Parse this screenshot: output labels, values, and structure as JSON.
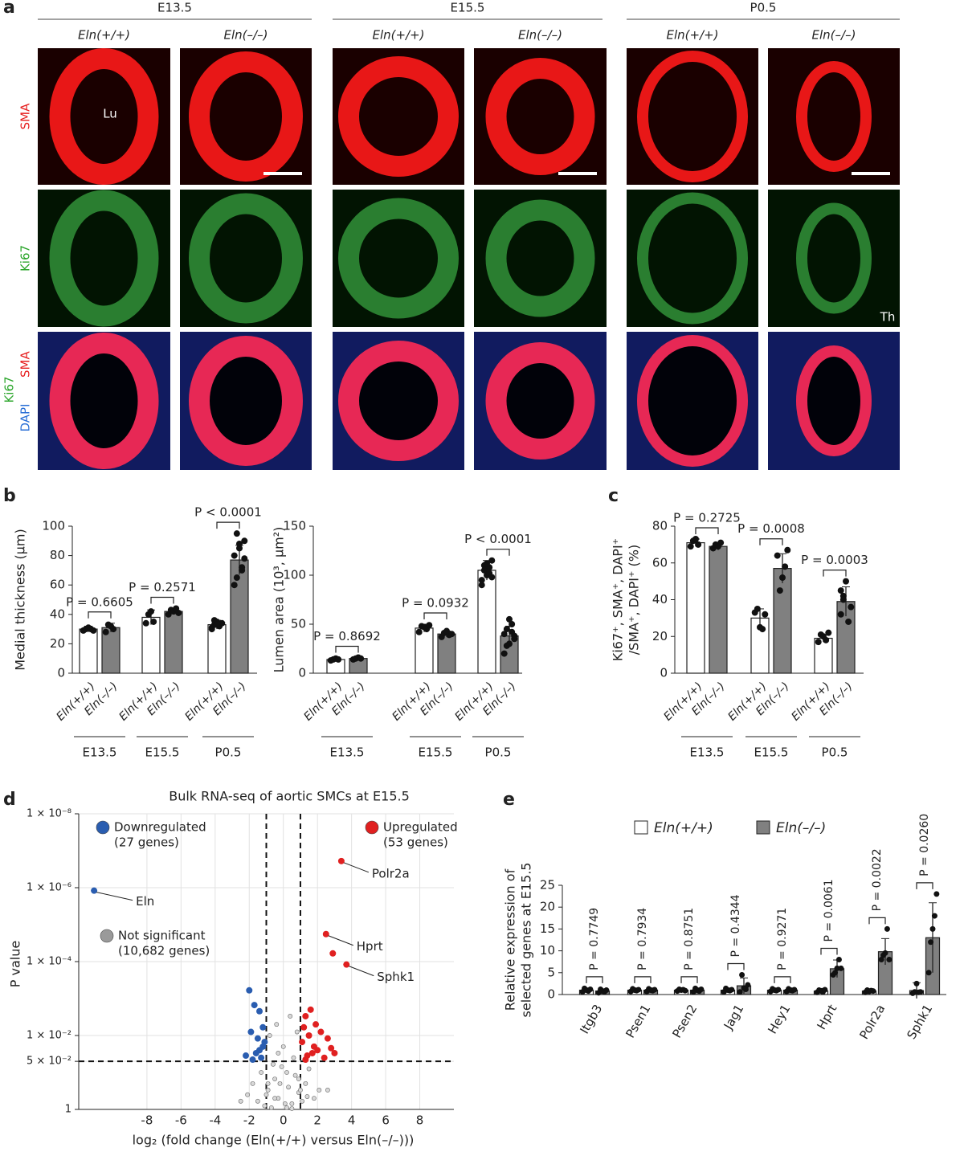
{
  "panel_a": {
    "label": "a",
    "timepoints": [
      "E13.5",
      "E15.5",
      "P0.5"
    ],
    "genotypes": [
      "Eln(+/+)",
      "Eln(–/–)"
    ],
    "rows": [
      [
        "SMA"
      ],
      [
        "Ki67"
      ],
      [
        "Ki67",
        "SMA",
        "DAPI"
      ]
    ],
    "lumen_label": "Lu",
    "thymus_label": "Th"
  },
  "chart_data": [
    {
      "type": "bar",
      "panel": "b",
      "ylabel": [
        "Medial thickness (μm)"
      ],
      "categories": [
        "E13.5",
        "E15.5",
        "P0.5"
      ],
      "ylim": [
        0,
        100
      ],
      "yticks": [
        0,
        20,
        40,
        60,
        80,
        100
      ],
      "p_labels": [
        "P = 0.6605",
        "P = 0.2571",
        "P < 0.0001"
      ],
      "series": [
        {
          "name": "Eln(+/+)",
          "color": "#ffffff",
          "values": [
            30,
            38,
            33
          ],
          "errors": [
            2,
            5,
            3
          ],
          "points": [
            [
              29,
              30,
              31,
              30,
              29
            ],
            [
              34,
              40,
              42,
              35
            ],
            [
              30,
              33,
              35,
              32,
              34,
              31,
              36,
              33
            ]
          ]
        },
        {
          "name": "Eln(–/–)",
          "color": "#808080",
          "values": [
            31,
            42,
            77
          ],
          "errors": [
            3,
            2,
            10
          ],
          "points": [
            [
              28,
              33,
              32,
              30
            ],
            [
              40,
              43,
              42,
              44,
              41
            ],
            [
              60,
              95,
              88,
              70,
              78,
              80,
              65,
              85,
              72,
              90
            ]
          ]
        }
      ]
    },
    {
      "type": "bar",
      "ylabel": [
        "Lumen area (10³, μm²)"
      ],
      "categories": [
        "E13.5",
        "E15.5",
        "P0.5"
      ],
      "ylim": [
        0,
        150
      ],
      "yticks": [
        0,
        50,
        100,
        150
      ],
      "p_labels": [
        "P = 0.8692",
        "P = 0.0932",
        "P < 0.0001"
      ],
      "series": [
        {
          "name": "Eln(+/+)",
          "color": "#ffffff",
          "values": [
            14,
            46,
            105
          ],
          "errors": [
            1,
            4,
            10
          ],
          "points": [
            [
              13,
              14,
              15,
              14
            ],
            [
              42,
              48,
              47,
              45,
              49
            ],
            [
              90,
              110,
              100,
              108,
              115,
              95,
              105,
              112,
              102,
              98
            ]
          ]
        },
        {
          "name": "Eln(–/–)",
          "color": "#808080",
          "values": [
            15,
            40,
            38
          ],
          "errors": [
            1,
            3,
            10
          ],
          "points": [
            [
              14,
              15,
              16,
              15
            ],
            [
              37,
              41,
              43,
              39,
              40
            ],
            [
              20,
              45,
              30,
              50,
              35,
              40,
              28,
              55,
              42,
              38
            ]
          ]
        }
      ]
    },
    {
      "type": "bar",
      "panel": "c",
      "ylabel": [
        "Ki67⁺, SMA⁺, DAPI⁺",
        "/SMA⁺, DAPI⁺ (%)"
      ],
      "categories": [
        "E13.5",
        "E15.5",
        "P0.5"
      ],
      "ylim": [
        0,
        80
      ],
      "yticks": [
        0,
        20,
        40,
        60,
        80
      ],
      "p_labels": [
        "P = 0.2725",
        "P = 0.0008",
        "P = 0.0003"
      ],
      "series": [
        {
          "name": "Eln(+/+)",
          "color": "#ffffff",
          "values": [
            71,
            30,
            19
          ],
          "errors": [
            2,
            5,
            2
          ],
          "points": [
            [
              69,
              72,
              73,
              70
            ],
            [
              33,
              35,
              25,
              24,
              32
            ],
            [
              17,
              21,
              20,
              18,
              22
            ]
          ]
        },
        {
          "name": "Eln(–/–)",
          "color": "#808080",
          "values": [
            69,
            57,
            39
          ],
          "errors": [
            2,
            8,
            8
          ],
          "points": [
            [
              68,
              70,
              69,
              71
            ],
            [
              64,
              45,
              52,
              58,
              67
            ],
            [
              32,
              42,
              50,
              28,
              36,
              45,
              40
            ]
          ]
        }
      ]
    },
    {
      "type": "scatter",
      "panel": "d",
      "title": "Bulk RNA-seq of aortic SMCs at E15.5",
      "xlabel": "log₂ (fold change (Eln(+/+) versus Eln(–/–)))",
      "ylabel": "P value",
      "log_y": true,
      "grid": true,
      "xlim": [
        -12,
        10
      ],
      "xticks": [
        -8,
        -6,
        -4,
        -2,
        0,
        2,
        4,
        6,
        8
      ],
      "ylim": [
        1,
        1e-08
      ],
      "yticks": [
        {
          "value": 1e-08,
          "label": "1 × 10⁻⁸"
        },
        {
          "value": 1e-06,
          "label": "1 × 10⁻⁶"
        },
        {
          "value": 0.0001,
          "label": "1 × 10⁻⁴"
        },
        {
          "value": 0.01,
          "label": "1 × 10⁻²"
        },
        {
          "value": 0.05,
          "label": "5 × 10⁻²"
        },
        1
      ],
      "thresholds_x": [
        -1,
        1
      ],
      "threshold_y": 0.05,
      "series": [
        {
          "name": "Downregulated",
          "sublabel": "(27 genes)",
          "color": "#2a5db0",
          "x": [
            -11.1,
            -2.0,
            -1.7,
            -1.4,
            -1.9,
            -1.5,
            -1.2,
            -1.6,
            -1.3,
            -1.1,
            -2.2,
            -1.8,
            -1.2,
            -1.4
          ],
          "y": [
            1.2e-06,
            0.0006,
            0.0015,
            0.0022,
            0.008,
            0.012,
            0.02,
            0.03,
            0.04,
            0.015,
            0.035,
            0.045,
            0.006,
            0.025
          ],
          "point_labels": [
            "Eln",
            null,
            null,
            null,
            null,
            null,
            null,
            null,
            null,
            null,
            null,
            null,
            null,
            null
          ]
        },
        {
          "name": "Upregulated",
          "sublabel": "(53 genes)",
          "color": "#e02020",
          "x": [
            3.4,
            2.5,
            2.9,
            3.7,
            1.3,
            1.6,
            1.9,
            1.2,
            2.2,
            1.5,
            2.6,
            1.1,
            1.8,
            2.0,
            3.0,
            1.4,
            2.4,
            1.7,
            1.3,
            2.8
          ],
          "y": [
            1.9e-07,
            1.8e-05,
            6e-05,
            0.00012,
            0.003,
            0.002,
            0.005,
            0.006,
            0.008,
            0.01,
            0.012,
            0.015,
            0.02,
            0.025,
            0.03,
            0.035,
            0.04,
            0.03,
            0.045,
            0.022
          ],
          "point_labels": [
            "Polr2a",
            "Hprt",
            null,
            "Sphk1",
            null,
            null,
            null,
            null,
            null,
            null,
            null,
            null,
            null,
            null,
            null,
            null,
            null,
            null,
            null,
            null
          ]
        },
        {
          "name": "Not significant",
          "sublabel": "(10,682 genes)",
          "color": "#9a9a9a",
          "x": [
            -2.1,
            -1.8,
            -1.5,
            -1.3,
            -1.1,
            -0.9,
            -0.7,
            -0.5,
            -0.3,
            -0.1,
            0.1,
            0.3,
            0.5,
            0.7,
            0.9,
            1.1,
            1.3,
            1.5,
            1.8,
            2.1,
            -0.8,
            -0.4,
            0,
            0.4,
            0.8,
            -0.6,
            -0.2,
            0.2,
            0.6,
            1.0,
            -1.0,
            2.6,
            -2.5,
            0.5,
            -0.5,
            0.9,
            -0.9,
            0.2,
            -0.3,
            1.4
          ],
          "y": [
            0.4,
            0.2,
            0.6,
            0.1,
            0.8,
            0.3,
            0.9,
            0.15,
            0.5,
            0.07,
            0.7,
            0.25,
            0.95,
            0.12,
            0.35,
            0.6,
            0.2,
            0.08,
            0.5,
            0.3,
            0.01,
            0.005,
            0.02,
            0.003,
            0.008,
            0.06,
            0.2,
            0.1,
            0.04,
            0.3,
            0.4,
            0.3,
            0.6,
            0.7,
            0.5,
            0.15,
            0.2,
            0.9,
            0.03,
            0.45
          ],
          "point_labels": [
            null,
            null,
            null,
            null,
            null,
            null,
            null,
            null,
            null,
            null,
            null,
            null,
            null,
            null,
            null,
            null,
            null,
            null,
            null,
            null,
            null,
            null,
            null,
            null,
            null,
            null,
            null,
            null,
            null,
            null,
            null,
            null,
            null,
            null,
            null,
            null,
            null,
            null,
            null,
            null
          ]
        }
      ]
    },
    {
      "type": "bar",
      "panel": "e",
      "legend": true,
      "ylabel": [
        "Relative expression of",
        "selected genes at E15.5"
      ],
      "categories": [
        "Itgb3",
        "Psen1",
        "Psen2",
        "Jag1",
        "Hey1",
        "Hprt",
        "Polr2a",
        "Sphk1"
      ],
      "ylim": [
        0,
        25
      ],
      "yticks": [
        0,
        5,
        10,
        15,
        20,
        25
      ],
      "p_labels": [
        "P = 0.7749",
        "P = 0.7934",
        "P = 0.8751",
        "P = 0.4344",
        "P = 0.9271",
        "P = 0.0061",
        "P = 0.0022",
        "P = 0.0260"
      ],
      "series": [
        {
          "name": "Eln(+/+)",
          "color": "#ffffff",
          "values": [
            1,
            1,
            1,
            1,
            1,
            0.8,
            0.8,
            0.9
          ],
          "errors": [
            0.5,
            0.5,
            0.5,
            0.5,
            0.5,
            0.6,
            0.5,
            1.8
          ],
          "points": [
            [
              0.6,
              1.4,
              1,
              0.8,
              1.2
            ],
            [
              0.7,
              1.3,
              1,
              0.9,
              1.1
            ],
            [
              0.8,
              1.2,
              1,
              1.1,
              0.9
            ],
            [
              0.6,
              1.4,
              1,
              0.9,
              1.1
            ],
            [
              0.7,
              1.3,
              1,
              0.9,
              1.1
            ],
            [
              0.5,
              1,
              0.8,
              0.6,
              1.1
            ],
            [
              0.5,
              1,
              0.7,
              0.9,
              0.8
            ],
            [
              0.3,
              0.6,
              2.5,
              0.5,
              0.6
            ]
          ]
        },
        {
          "name": "Eln(–/–)",
          "color": "#808080",
          "values": [
            0.8,
            1,
            1,
            2,
            1,
            5.9,
            9.8,
            13
          ],
          "errors": [
            0.5,
            0.5,
            0.5,
            1.8,
            0.5,
            2,
            3,
            8
          ],
          "points": [
            [
              0.4,
              1.2,
              0.8,
              0.6,
              1
            ],
            [
              0.7,
              1.3,
              1,
              0.9,
              1.1
            ],
            [
              0.6,
              1.4,
              1,
              0.8,
              1.2
            ],
            [
              0.6,
              4.5,
              1.5,
              1.2,
              2.2
            ],
            [
              0.7,
              1.3,
              1,
              0.9,
              1.1
            ],
            [
              4.5,
              5,
              6,
              8,
              6
            ],
            [
              8,
              9,
              9.5,
              15,
              8
            ],
            [
              5,
              12,
              15,
              18,
              23
            ]
          ]
        }
      ]
    }
  ]
}
